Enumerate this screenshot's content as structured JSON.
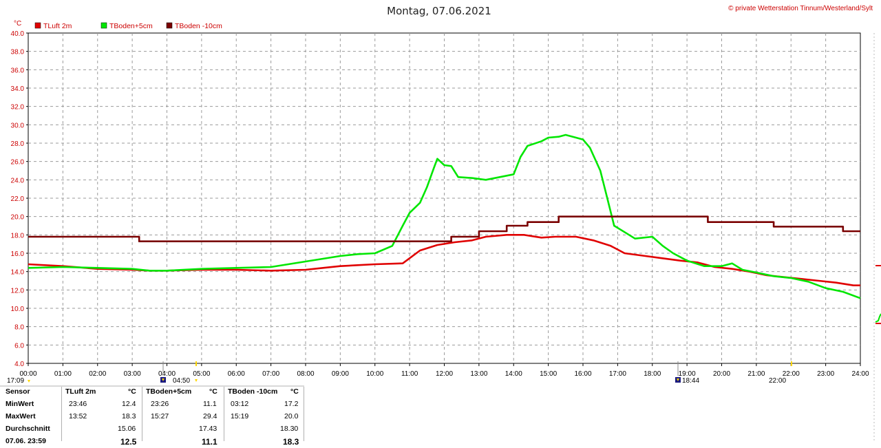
{
  "title": "Montag, 07.06.2021",
  "credit": "© private Wetterstation Tinnum/Westerland/Sylt",
  "colors": {
    "tluft": "#e00000",
    "tboden5": "#00e600",
    "tboden10": "#7a0000",
    "axis": "#cc0000"
  },
  "chart_data": {
    "type": "line",
    "ylabel": "°C",
    "ylim": [
      4.0,
      40.0
    ],
    "yticks": [
      "4.0",
      "6.0",
      "8.0",
      "10.0",
      "12.0",
      "14.0",
      "16.0",
      "18.0",
      "20.0",
      "22.0",
      "24.0",
      "26.0",
      "28.0",
      "30.0",
      "32.0",
      "34.0",
      "36.0",
      "38.0",
      "40.0"
    ],
    "xlim": [
      0,
      24
    ],
    "xticks": [
      "00:00",
      "01:00",
      "02:00",
      "03:00",
      "04:00",
      "05:00",
      "06:00",
      "07:00",
      "08:00",
      "09:00",
      "10:00",
      "11:00",
      "12:00",
      "13:00",
      "14:00",
      "15:00",
      "16:00",
      "17:00",
      "18:00",
      "19:00",
      "20:00",
      "21:00",
      "22:00",
      "23:00",
      "24:00"
    ],
    "grid": true,
    "legend_position": "top-left",
    "series": [
      {
        "name": "TLuft 2m",
        "color": "#e00000",
        "x": [
          0,
          1,
          2,
          3,
          3.5,
          4,
          5,
          6,
          7,
          8,
          8.5,
          9,
          9.5,
          10,
          10.8,
          11.3,
          11.8,
          12.3,
          12.8,
          13.2,
          13.8,
          14.3,
          14.8,
          15.2,
          15.8,
          16.3,
          16.8,
          17.2,
          17.8,
          18.2,
          18.8,
          19.3,
          19.8,
          20.3,
          20.8,
          21.3,
          21.8,
          22.3,
          22.8,
          23.3,
          23.8,
          24
        ],
        "y": [
          14.8,
          14.6,
          14.3,
          14.2,
          14.1,
          14.1,
          14.2,
          14.2,
          14.1,
          14.2,
          14.4,
          14.6,
          14.7,
          14.8,
          14.9,
          16.3,
          16.9,
          17.2,
          17.4,
          17.8,
          18.0,
          18.0,
          17.7,
          17.8,
          17.8,
          17.4,
          16.8,
          16.0,
          15.7,
          15.5,
          15.2,
          15.0,
          14.5,
          14.3,
          14.0,
          13.6,
          13.4,
          13.2,
          13.0,
          12.8,
          12.5,
          12.5
        ]
      },
      {
        "name": "TBoden+5cm",
        "color": "#00e600",
        "x": [
          0,
          1,
          2,
          3,
          3.5,
          4,
          5,
          6,
          7,
          7.5,
          8,
          8.5,
          9,
          9.5,
          10,
          10.5,
          10.8,
          11,
          11.3,
          11.5,
          11.7,
          11.8,
          12,
          12.2,
          12.4,
          12.8,
          13.2,
          13.6,
          14,
          14.2,
          14.4,
          14.8,
          15,
          15.3,
          15.5,
          15.8,
          16,
          16.2,
          16.5,
          16.7,
          16.9,
          17.2,
          17.5,
          18,
          18.3,
          18.6,
          19,
          19.5,
          20,
          20.3,
          20.6,
          21,
          21.5,
          22,
          22.5,
          23,
          23.5,
          24
        ],
        "y": [
          14.4,
          14.5,
          14.4,
          14.3,
          14.1,
          14.1,
          14.3,
          14.4,
          14.5,
          14.8,
          15.1,
          15.4,
          15.7,
          15.9,
          16.0,
          16.8,
          19.0,
          20.4,
          21.5,
          23.2,
          25.3,
          26.3,
          25.6,
          25.5,
          24.3,
          24.2,
          24.0,
          24.3,
          24.6,
          26.5,
          27.7,
          28.2,
          28.6,
          28.7,
          28.9,
          28.6,
          28.4,
          27.5,
          25.0,
          22.0,
          19.0,
          18.3,
          17.6,
          17.8,
          16.8,
          16.0,
          15.2,
          14.6,
          14.6,
          14.9,
          14.2,
          13.9,
          13.5,
          13.3,
          12.9,
          12.2,
          11.8,
          11.1
        ]
      },
      {
        "name": "TBoden -10cm",
        "color": "#7a0000",
        "x": [
          0,
          3.2,
          3.2,
          12.2,
          12.2,
          13,
          13,
          13.8,
          13.8,
          14.4,
          14.4,
          15.3,
          15.3,
          19.6,
          19.6,
          21.5,
          21.5,
          23.5,
          23.5,
          24
        ],
        "y": [
          17.8,
          17.8,
          17.3,
          17.3,
          17.8,
          17.8,
          18.4,
          18.4,
          19.0,
          19.0,
          19.4,
          19.4,
          20.0,
          20.0,
          19.4,
          19.4,
          18.9,
          18.9,
          18.4,
          18.4
        ]
      }
    ]
  },
  "sun": {
    "yesterday_sunset": "17:09",
    "sunrise": "04:50",
    "sunset": "18:44",
    "current": "22:00"
  },
  "stats": {
    "headers": [
      "Sensor",
      "TLuft 2m",
      "°C",
      "TBoden+5cm",
      "°C",
      "TBoden -10cm",
      "°C"
    ],
    "min": {
      "label": "MinWert",
      "t1_time": "23:46",
      "t1_val": "12.4",
      "t2_time": "23:26",
      "t2_val": "11.1",
      "t3_time": "03:12",
      "t3_val": "17.2"
    },
    "max": {
      "label": "MaxWert",
      "t1_time": "13:52",
      "t1_val": "18.3",
      "t2_time": "15:27",
      "t2_val": "29.4",
      "t3_time": "15:19",
      "t3_val": "20.0"
    },
    "avg": {
      "label": "Durchschnitt",
      "t1_val": "15.06",
      "t2_val": "17.43",
      "t3_val": "18.30"
    },
    "last": {
      "label": "07.06. 23:59",
      "t1_val": "12.5",
      "t2_val": "11.1",
      "t3_val": "18.3"
    }
  }
}
